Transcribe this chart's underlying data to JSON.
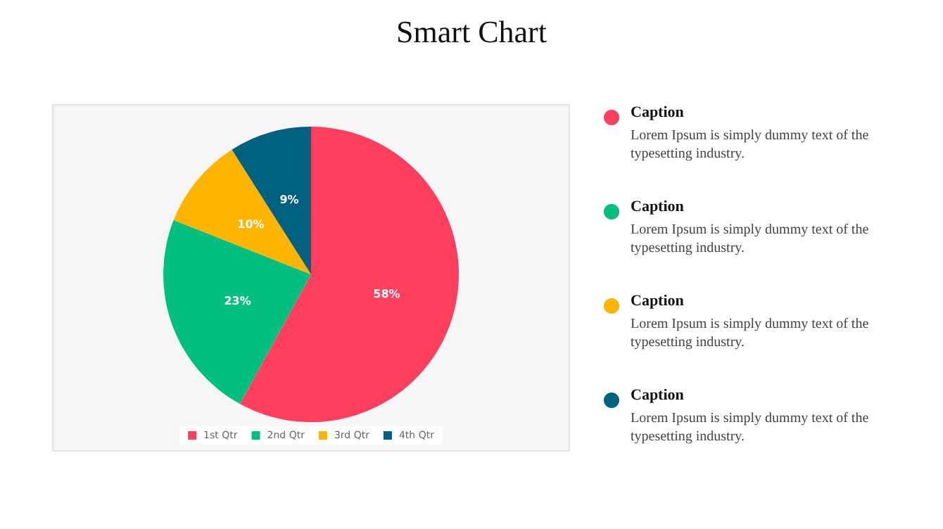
{
  "chart_data": {
    "type": "pie",
    "title": "Smart Chart",
    "categories": [
      "1st Qtr",
      "2nd Qtr",
      "3rd Qtr",
      "4th Qtr"
    ],
    "values": [
      58,
      23,
      10,
      9
    ],
    "colors": [
      "#ff3f5e",
      "#00bf7f",
      "#ffb500",
      "#00617f"
    ],
    "value_labels": [
      "58%",
      "23%",
      "10%",
      "9%"
    ],
    "legend": "bottom",
    "annotations": [
      "Caption",
      "Lorem Ipsum is simply dummy text of the typesetting industry.",
      "Caption",
      "Lorem Ipsum is simply dummy text of the typesetting industry.",
      "Caption",
      "Lorem Ipsum is simply dummy text of the typesetting industry.",
      "Caption",
      "Lorem Ipsum is simply dummy text of the typesetting industry."
    ]
  }
}
